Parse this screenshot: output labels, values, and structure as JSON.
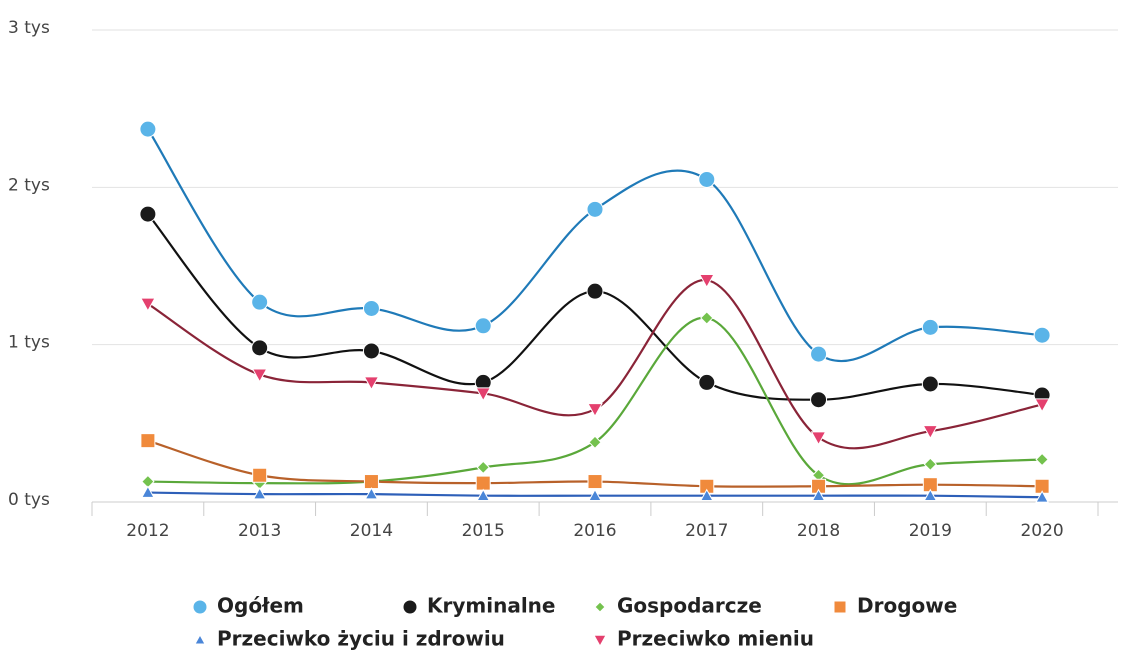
{
  "chart_data": {
    "type": "line",
    "smooth": true,
    "grid": true,
    "legend": "bottom",
    "categories": [
      "2012",
      "2013",
      "2014",
      "2015",
      "2016",
      "2017",
      "2018",
      "2019",
      "2020"
    ],
    "ylim": [
      0,
      3
    ],
    "yticks": [
      {
        "value": 0,
        "label": "0 tys"
      },
      {
        "value": 1,
        "label": "1 tys"
      },
      {
        "value": 2,
        "label": "2 tys"
      },
      {
        "value": 3,
        "label": "3 tys"
      }
    ],
    "series": [
      {
        "name": "Ogółem",
        "color": "#1f7ab8",
        "marker_color": "#5ab4e8",
        "marker": "circle",
        "values": [
          2.37,
          1.27,
          1.23,
          1.12,
          1.86,
          2.05,
          0.94,
          1.11,
          1.06
        ]
      },
      {
        "name": "Kryminalne",
        "color": "#111111",
        "marker_color": "#1a1a1a",
        "marker": "circle",
        "values": [
          1.83,
          0.98,
          0.96,
          0.76,
          1.34,
          0.76,
          0.65,
          0.75,
          0.68
        ]
      },
      {
        "name": "Gospodarcze",
        "color": "#5aa83a",
        "marker_color": "#74c24e",
        "marker": "diamond",
        "values": [
          0.13,
          0.12,
          0.13,
          0.22,
          0.38,
          1.17,
          0.17,
          0.24,
          0.27
        ]
      },
      {
        "name": "Drogowe",
        "color": "#b8612a",
        "marker_color": "#f08a3c",
        "marker": "square",
        "values": [
          0.39,
          0.17,
          0.13,
          0.12,
          0.13,
          0.1,
          0.1,
          0.11,
          0.1
        ]
      },
      {
        "name": "Przeciwko życiu i zdrowiu",
        "color": "#2d5fb8",
        "marker_color": "#4a86d8",
        "marker": "triangle",
        "values": [
          0.06,
          0.05,
          0.05,
          0.04,
          0.04,
          0.04,
          0.04,
          0.04,
          0.03
        ]
      },
      {
        "name": "Przeciwko mieniu",
        "color": "#8a2438",
        "marker_color": "#e4406e",
        "marker": "triangle-down",
        "values": [
          1.26,
          0.81,
          0.76,
          0.69,
          0.59,
          1.41,
          0.41,
          0.45,
          0.62
        ]
      }
    ]
  }
}
